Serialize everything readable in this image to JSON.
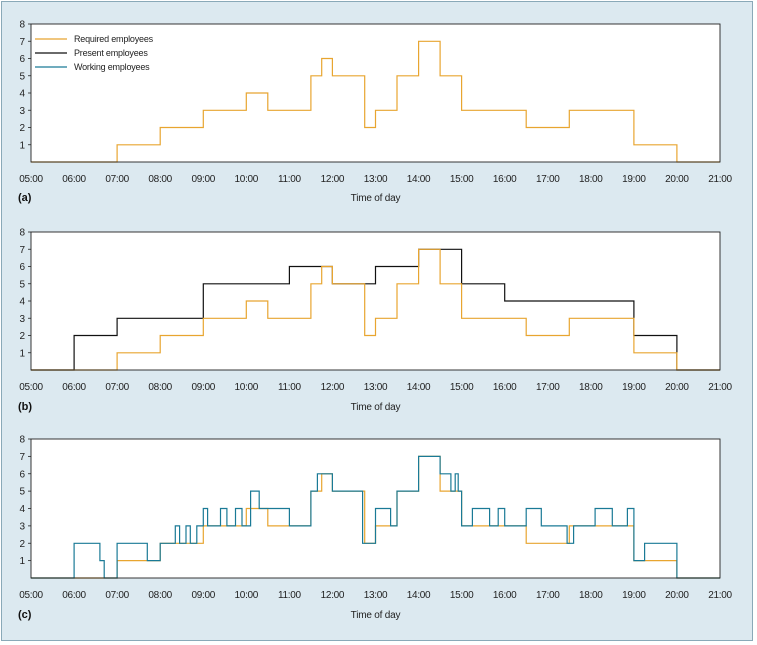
{
  "chart_data": [
    {
      "type": "line",
      "panel_label": "(a)",
      "xlabel": "Time of day",
      "x_tick_labels": [
        "05:00",
        "06:00",
        "07:00",
        "08:00",
        "09:00",
        "10:00",
        "11:00",
        "12:00",
        "13:00",
        "14:00",
        "15:00",
        "16:00",
        "17:00",
        "18:00",
        "19:00",
        "20:00",
        "21:00"
      ],
      "y_tick_labels": [
        "1",
        "2",
        "3",
        "4",
        "5",
        "6",
        "7",
        "8"
      ],
      "xlim": [
        5,
        21
      ],
      "ylim": [
        0,
        8
      ],
      "legend_position": "top-left",
      "legend": [
        {
          "name": "Required employees",
          "color": "#e8a530"
        },
        {
          "name": "Present employees",
          "color": "#111111"
        },
        {
          "name": "Working employees",
          "color": "#1a7a96"
        }
      ],
      "series": [
        {
          "name": "Required employees",
          "color": "#e8a530",
          "step_x": [
            5,
            7,
            8,
            9,
            10,
            10.5,
            11.5,
            11.75,
            12,
            12.75,
            13,
            13.5,
            14,
            14.5,
            15,
            16.5,
            17.5,
            19,
            20,
            21
          ],
          "step_y": [
            0,
            1,
            2,
            3,
            4,
            3,
            5,
            6,
            5,
            2,
            3,
            5,
            7,
            5,
            3,
            2,
            3,
            1,
            0,
            0
          ]
        }
      ]
    },
    {
      "type": "line",
      "panel_label": "(b)",
      "xlabel": "Time of day",
      "x_tick_labels": [
        "05:00",
        "06:00",
        "07:00",
        "08:00",
        "09:00",
        "10:00",
        "11:00",
        "12:00",
        "13:00",
        "14:00",
        "15:00",
        "16:00",
        "17:00",
        "18:00",
        "19:00",
        "20:00",
        "21:00"
      ],
      "y_tick_labels": [
        "1",
        "2",
        "3",
        "4",
        "5",
        "6",
        "7",
        "8"
      ],
      "xlim": [
        5,
        21
      ],
      "ylim": [
        0,
        8
      ],
      "series": [
        {
          "name": "Present employees",
          "color": "#111111",
          "step_x": [
            5,
            6,
            7,
            9,
            11,
            12,
            13,
            14,
            15,
            16,
            19,
            20,
            21
          ],
          "step_y": [
            0,
            2,
            3,
            5,
            6,
            5,
            6,
            7,
            5,
            4,
            2,
            0,
            0
          ]
        },
        {
          "name": "Required employees",
          "color": "#e8a530",
          "step_x": [
            5,
            7,
            8,
            9,
            10,
            10.5,
            11.5,
            11.75,
            12,
            12.75,
            13,
            13.5,
            14,
            14.5,
            15,
            16.5,
            17.5,
            19,
            20,
            21
          ],
          "step_y": [
            0,
            1,
            2,
            3,
            4,
            3,
            5,
            6,
            5,
            2,
            3,
            5,
            7,
            5,
            3,
            2,
            3,
            1,
            0,
            0
          ]
        }
      ]
    },
    {
      "type": "line",
      "panel_label": "(c)",
      "xlabel": "Time of day",
      "x_tick_labels": [
        "05:00",
        "06:00",
        "07:00",
        "08:00",
        "09:00",
        "10:00",
        "11:00",
        "12:00",
        "13:00",
        "14:00",
        "15:00",
        "16:00",
        "17:00",
        "18:00",
        "19:00",
        "20:00",
        "21:00"
      ],
      "y_tick_labels": [
        "1",
        "2",
        "3",
        "4",
        "5",
        "6",
        "7",
        "8"
      ],
      "xlim": [
        5,
        21
      ],
      "ylim": [
        0,
        8
      ],
      "series": [
        {
          "name": "Required employees",
          "color": "#e8a530",
          "step_x": [
            5,
            7,
            8,
            9,
            10,
            10.5,
            11.5,
            11.75,
            12,
            12.75,
            13,
            13.5,
            14,
            14.5,
            15,
            16.5,
            17.5,
            19,
            20,
            21
          ],
          "step_y": [
            0,
            1,
            2,
            3,
            4,
            3,
            5,
            6,
            5,
            2,
            3,
            5,
            7,
            5,
            3,
            2,
            3,
            1,
            0,
            0
          ]
        },
        {
          "name": "Working employees",
          "color": "#1a7a96",
          "step_x": [
            5,
            6,
            6.6,
            6.7,
            7,
            7.7,
            8,
            8.35,
            8.45,
            8.6,
            8.7,
            8.85,
            9,
            9.1,
            9.4,
            9.55,
            9.75,
            9.9,
            10.1,
            10.3,
            11,
            11.5,
            11.65,
            12,
            12.7,
            13,
            13.35,
            13.5,
            14,
            14.5,
            14.75,
            14.85,
            14.92,
            15,
            15.25,
            15.65,
            15.85,
            16,
            16.5,
            16.85,
            17.45,
            17.6,
            18.1,
            18.5,
            18.85,
            19,
            19.25,
            20,
            21
          ],
          "step_y": [
            0,
            2,
            1,
            0,
            2,
            1,
            2,
            3,
            2,
            3,
            2,
            3,
            4,
            3,
            4,
            3,
            4,
            3,
            5,
            4,
            3,
            5,
            6,
            5,
            2,
            4,
            3,
            5,
            7,
            6,
            5,
            6,
            5,
            3,
            4,
            3,
            4,
            3,
            4,
            3,
            2,
            3,
            4,
            3,
            4,
            1,
            2,
            0,
            0
          ]
        }
      ]
    }
  ]
}
